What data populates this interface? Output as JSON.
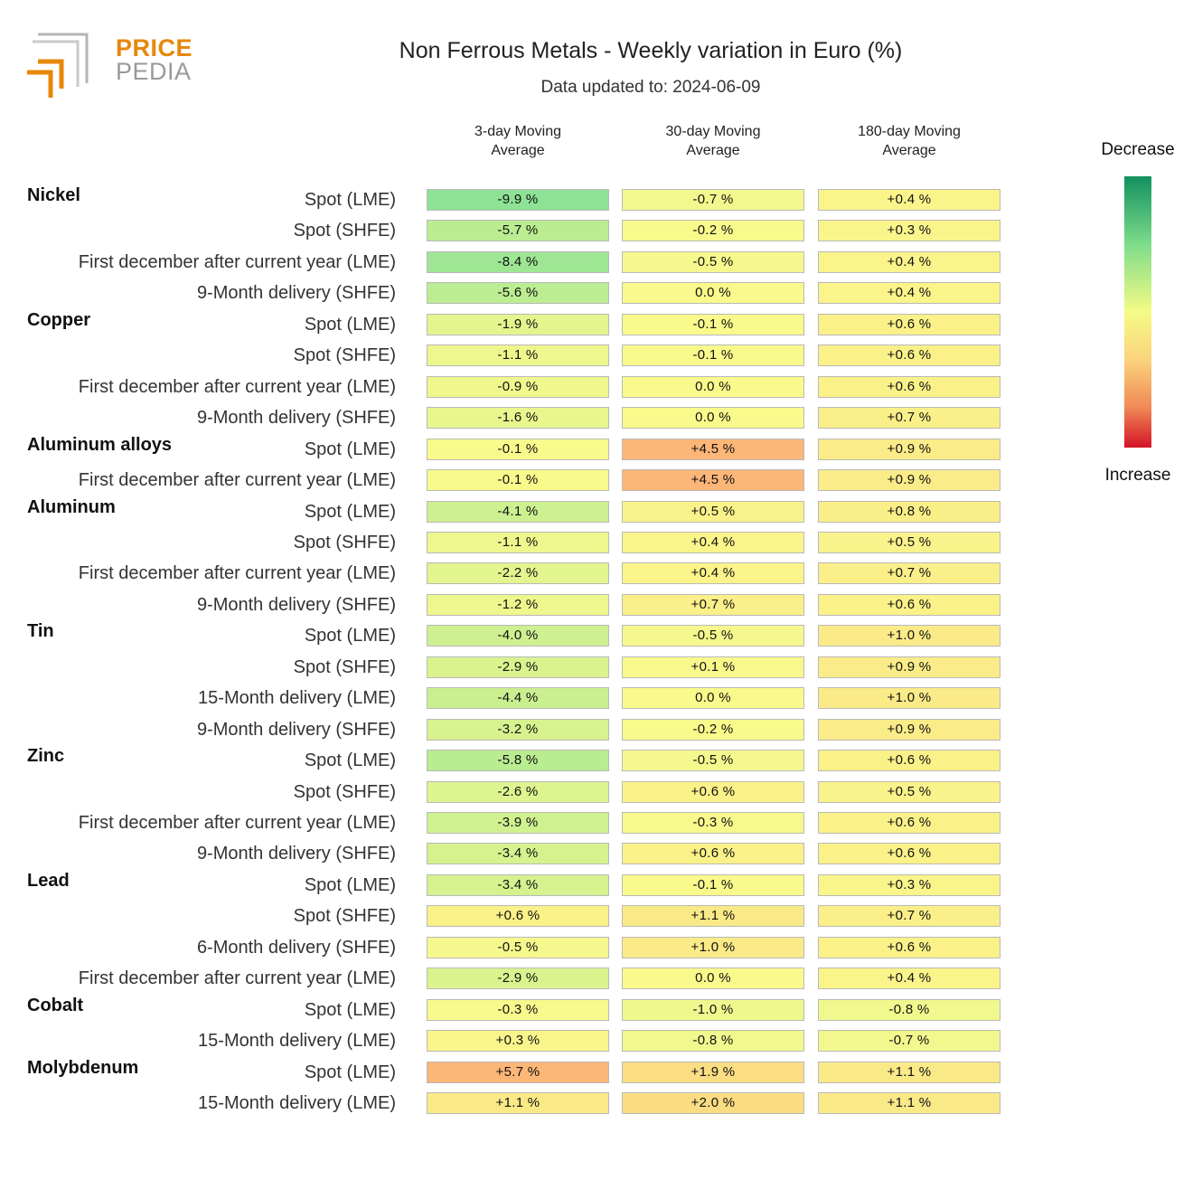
{
  "brand": {
    "line1": "PRICE",
    "line2": "PEDIA"
  },
  "title": "Non Ferrous Metals - Weekly variation in Euro (%)",
  "subtitle": "Data updated to: 2024-06-09",
  "legend": {
    "top": "Decrease",
    "bottom": "Increase"
  },
  "colors": {
    "brand_orange": "#e8870a",
    "brand_gray": "#9a9a9a"
  },
  "chart_data": {
    "type": "table",
    "title": "Non Ferrous Metals - Weekly variation in Euro (%)",
    "columns": [
      "3-day Moving\nAverage",
      "30-day Moving\nAverage",
      "180-day Moving\nAverage"
    ],
    "groups": [
      {
        "name": "Nickel",
        "rows": [
          {
            "label": "Spot (LME)",
            "values": [
              -9.9,
              -0.7,
              0.4
            ]
          },
          {
            "label": "Spot (SHFE)",
            "values": [
              -5.7,
              -0.2,
              0.3
            ]
          },
          {
            "label": "First december after current year (LME)",
            "values": [
              -8.4,
              -0.5,
              0.4
            ]
          },
          {
            "label": "9-Month delivery (SHFE)",
            "values": [
              -5.6,
              0.0,
              0.4
            ]
          }
        ]
      },
      {
        "name": "Copper",
        "rows": [
          {
            "label": "Spot (LME)",
            "values": [
              -1.9,
              -0.1,
              0.6
            ]
          },
          {
            "label": "Spot (SHFE)",
            "values": [
              -1.1,
              -0.1,
              0.6
            ]
          },
          {
            "label": "First december after current year (LME)",
            "values": [
              -0.9,
              0.0,
              0.6
            ]
          },
          {
            "label": "9-Month delivery (SHFE)",
            "values": [
              -1.6,
              0.0,
              0.7
            ]
          }
        ]
      },
      {
        "name": "Aluminum alloys",
        "rows": [
          {
            "label": "Spot (LME)",
            "values": [
              -0.1,
              4.5,
              0.9
            ]
          },
          {
            "label": "First december after current year (LME)",
            "values": [
              -0.1,
              4.5,
              0.9
            ]
          }
        ]
      },
      {
        "name": "Aluminum",
        "rows": [
          {
            "label": "Spot (LME)",
            "values": [
              -4.1,
              0.5,
              0.8
            ]
          },
          {
            "label": "Spot (SHFE)",
            "values": [
              -1.1,
              0.4,
              0.5
            ]
          },
          {
            "label": "First december after current year (LME)",
            "values": [
              -2.2,
              0.4,
              0.7
            ]
          },
          {
            "label": "9-Month delivery (SHFE)",
            "values": [
              -1.2,
              0.7,
              0.6
            ]
          }
        ]
      },
      {
        "name": "Tin",
        "rows": [
          {
            "label": "Spot (LME)",
            "values": [
              -4.0,
              -0.5,
              1.0
            ]
          },
          {
            "label": "Spot (SHFE)",
            "values": [
              -2.9,
              0.1,
              0.9
            ]
          },
          {
            "label": "15-Month delivery (LME)",
            "values": [
              -4.4,
              0.0,
              1.0
            ]
          },
          {
            "label": "9-Month delivery (SHFE)",
            "values": [
              -3.2,
              -0.2,
              0.9
            ]
          }
        ]
      },
      {
        "name": "Zinc",
        "rows": [
          {
            "label": "Spot (LME)",
            "values": [
              -5.8,
              -0.5,
              0.6
            ]
          },
          {
            "label": "Spot (SHFE)",
            "values": [
              -2.6,
              0.6,
              0.5
            ]
          },
          {
            "label": "First december after current year (LME)",
            "values": [
              -3.9,
              -0.3,
              0.6
            ]
          },
          {
            "label": "9-Month delivery (SHFE)",
            "values": [
              -3.4,
              0.6,
              0.6
            ]
          }
        ]
      },
      {
        "name": "Lead",
        "rows": [
          {
            "label": "Spot (LME)",
            "values": [
              -3.4,
              -0.1,
              0.3
            ]
          },
          {
            "label": "Spot (SHFE)",
            "values": [
              0.6,
              1.1,
              0.7
            ]
          },
          {
            "label": "6-Month delivery (SHFE)",
            "values": [
              -0.5,
              1.0,
              0.6
            ]
          },
          {
            "label": "First december after current year (LME)",
            "values": [
              -2.9,
              0.0,
              0.4
            ]
          }
        ]
      },
      {
        "name": "Cobalt",
        "rows": [
          {
            "label": "Spot (LME)",
            "values": [
              -0.3,
              -1.0,
              -0.8
            ]
          },
          {
            "label": "15-Month delivery (LME)",
            "values": [
              0.3,
              -0.8,
              -0.7
            ]
          }
        ]
      },
      {
        "name": "Molybdenum",
        "rows": [
          {
            "label": "Spot (LME)",
            "values": [
              5.7,
              1.9,
              1.1
            ]
          },
          {
            "label": "15-Month delivery (LME)",
            "values": [
              1.1,
              2.0,
              1.1
            ]
          }
        ]
      }
    ]
  }
}
